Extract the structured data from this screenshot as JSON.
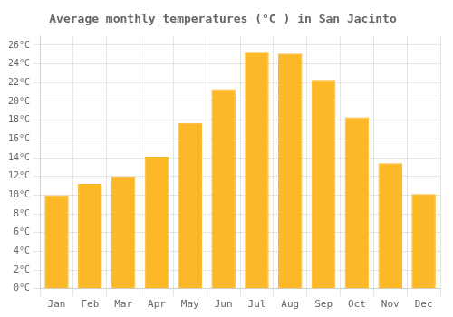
{
  "chart_data": {
    "type": "bar",
    "title": "Average monthly temperatures (°C ) in San Jacinto",
    "categories": [
      "Jan",
      "Feb",
      "Mar",
      "Apr",
      "May",
      "Jun",
      "Jul",
      "Aug",
      "Sep",
      "Oct",
      "Nov",
      "Dec"
    ],
    "values": [
      10.0,
      11.2,
      12.0,
      14.1,
      17.7,
      21.3,
      25.3,
      25.1,
      22.3,
      18.3,
      13.4,
      10.1
    ],
    "color": "#FDB827",
    "ylim": [
      0,
      27
    ],
    "yticks": [
      {
        "value": 0,
        "label": "0°C"
      },
      {
        "value": 2,
        "label": "2°C"
      },
      {
        "value": 4,
        "label": "4°C"
      },
      {
        "value": 6,
        "label": "6°C"
      },
      {
        "value": 8,
        "label": "8°C"
      },
      {
        "value": 10,
        "label": "10°C"
      },
      {
        "value": 12,
        "label": "12°C"
      },
      {
        "value": 14,
        "label": "14°C"
      },
      {
        "value": 16,
        "label": "16°C"
      },
      {
        "value": 18,
        "label": "18°C"
      },
      {
        "value": 20,
        "label": "20°C"
      },
      {
        "value": 22,
        "label": "22°C"
      },
      {
        "value": 24,
        "label": "24°C"
      },
      {
        "value": 26,
        "label": "26°C"
      }
    ],
    "grid": true
  }
}
